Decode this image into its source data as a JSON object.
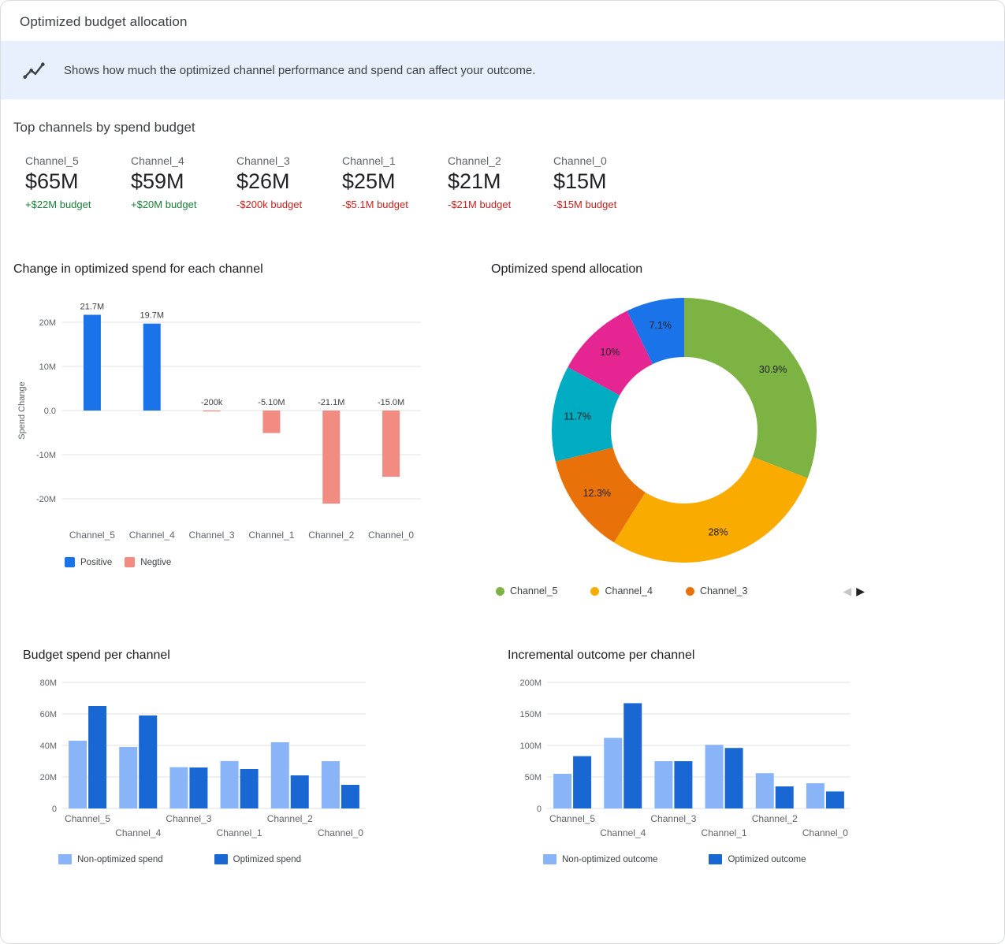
{
  "palette": {
    "positive_text": "#188038",
    "negative_text": "#c5221f",
    "banner_bg": "#e8f0fe",
    "grid_color": "#e0e0e0",
    "axis_text": "#5f6368"
  },
  "header": {
    "title": "Optimized budget allocation"
  },
  "banner": {
    "icon": "insights-icon",
    "text": "Shows how much the optimized channel performance and spend can affect your outcome."
  },
  "top_channels": {
    "title": "Top channels by spend budget",
    "cards": [
      {
        "name": "Channel_5",
        "value": "$65M",
        "delta": "+$22M budget",
        "direction": "up"
      },
      {
        "name": "Channel_4",
        "value": "$59M",
        "delta": "+$20M budget",
        "direction": "up"
      },
      {
        "name": "Channel_3",
        "value": "$26M",
        "delta": "-$200k budget",
        "direction": "down"
      },
      {
        "name": "Channel_1",
        "value": "$25M",
        "delta": "-$5.1M budget",
        "direction": "down"
      },
      {
        "name": "Channel_2",
        "value": "$21M",
        "delta": "-$21M budget",
        "direction": "down"
      },
      {
        "name": "Channel_0",
        "value": "$15M",
        "delta": "-$15M budget",
        "direction": "down"
      }
    ]
  },
  "icons": {
    "legend_prev": "◀",
    "legend_next": "▶"
  },
  "chart_data": [
    {
      "id": "spend_change",
      "type": "bar",
      "title": "Change in optimized spend for each channel",
      "ylabel": "Spend Change",
      "categories": [
        "Channel_5",
        "Channel_4",
        "Channel_3",
        "Channel_1",
        "Channel_2",
        "Channel_0"
      ],
      "values_m": [
        21.7,
        19.7,
        -0.2,
        -5.1,
        -21.1,
        -15.0
      ],
      "value_labels": [
        "21.7M",
        "19.7M",
        "-200k",
        "-5.10M",
        "-21.1M",
        "-15.0M"
      ],
      "ylim_m": [
        -25,
        25
      ],
      "yticks": [
        {
          "v": 20,
          "label": "20M"
        },
        {
          "v": 10,
          "label": "10M"
        },
        {
          "v": 0,
          "label": "0.0"
        },
        {
          "v": -10,
          "label": "-10M"
        },
        {
          "v": -20,
          "label": "-20M"
        }
      ],
      "colors": {
        "positive": "#1a73e8",
        "negative": "#f28b82"
      },
      "legend": [
        {
          "label": "Positive",
          "key": "positive"
        },
        {
          "label": "Negtive",
          "key": "negative"
        }
      ],
      "grid": true,
      "legend_position": "bottom"
    },
    {
      "id": "spend_allocation",
      "type": "pie",
      "title": "Optimized spend allocation",
      "slices": [
        {
          "label": "Channel_5",
          "pct": 30.9,
          "display": "30.9%",
          "color": "#7cb342"
        },
        {
          "label": "Channel_4",
          "pct": 28.0,
          "display": "28%",
          "color": "#f9ab00"
        },
        {
          "label": "Channel_3",
          "pct": 12.3,
          "display": "12.3%",
          "color": "#e8710a"
        },
        {
          "label": "Channel_1",
          "pct": 11.7,
          "display": "11.7%",
          "color": "#00acc1"
        },
        {
          "label": "Channel_2",
          "pct": 10.0,
          "display": "10%",
          "color": "#e52592"
        },
        {
          "label": "Channel_0",
          "pct": 7.1,
          "display": "7.1%",
          "color": "#1a73e8"
        }
      ],
      "donut": true,
      "legend_visible": [
        "Channel_5",
        "Channel_4",
        "Channel_3"
      ],
      "legend_position": "bottom"
    },
    {
      "id": "budget_spend",
      "type": "bar",
      "title": "Budget spend per channel",
      "categories": [
        "Channel_5",
        "Channel_4",
        "Channel_3",
        "Channel_1",
        "Channel_2",
        "Channel_0"
      ],
      "series": [
        {
          "name": "Non-optimized spend",
          "color": "#8ab4f8",
          "values_m": [
            43,
            39,
            26.2,
            30.1,
            42,
            30
          ]
        },
        {
          "name": "Optimized spend",
          "color": "#1967d2",
          "values_m": [
            65,
            59,
            26,
            25,
            21,
            15
          ]
        }
      ],
      "ylim_m": [
        0,
        80
      ],
      "yticks": [
        {
          "v": 0,
          "label": "0"
        },
        {
          "v": 20,
          "label": "20M"
        },
        {
          "v": 40,
          "label": "40M"
        },
        {
          "v": 60,
          "label": "60M"
        },
        {
          "v": 80,
          "label": "80M"
        }
      ],
      "grid": true,
      "legend_position": "bottom"
    },
    {
      "id": "incremental_outcome",
      "type": "bar",
      "title": "Incremental outcome per channel",
      "categories": [
        "Channel_5",
        "Channel_4",
        "Channel_3",
        "Channel_1",
        "Channel_2",
        "Channel_0"
      ],
      "series": [
        {
          "name": "Non-optimized outcome",
          "color": "#8ab4f8",
          "values_m": [
            55,
            112,
            75,
            101,
            56,
            40
          ]
        },
        {
          "name": "Optimized outcome",
          "color": "#1967d2",
          "values_m": [
            83,
            167,
            75,
            96,
            35,
            27
          ]
        }
      ],
      "ylim_m": [
        0,
        200
      ],
      "yticks": [
        {
          "v": 0,
          "label": "0"
        },
        {
          "v": 50,
          "label": "50M"
        },
        {
          "v": 100,
          "label": "100M"
        },
        {
          "v": 150,
          "label": "150M"
        },
        {
          "v": 200,
          "label": "200M"
        }
      ],
      "grid": true,
      "legend_position": "bottom"
    }
  ]
}
